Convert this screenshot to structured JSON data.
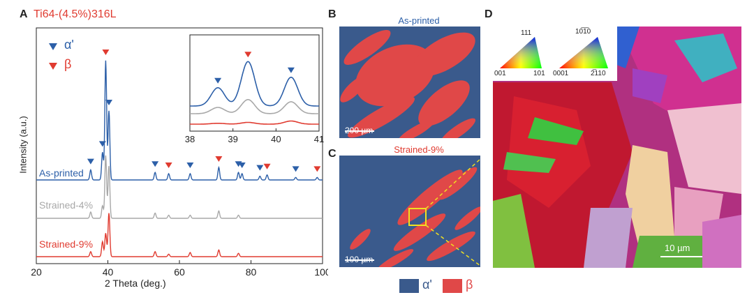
{
  "panels": {
    "a": {
      "letter": "A",
      "title": "Ti64-(4.5%)316L"
    },
    "b": {
      "letter": "B",
      "title": "As-printed",
      "scalebar": "200 µm"
    },
    "c": {
      "letter": "C",
      "title": "Strained-9%",
      "scalebar": "100 µm"
    },
    "d": {
      "letter": "D",
      "scalebar": "10 µm",
      "ipf_cubic": {
        "top": "111",
        "left": "001",
        "right": "101"
      },
      "ipf_hex": {
        "top": "10̅1̅0",
        "left": "0001",
        "right": "2̅110"
      }
    }
  },
  "phase_legend": [
    {
      "label": "α'",
      "color": "#3a5a8c"
    },
    {
      "label": "β",
      "color": "#e04848"
    }
  ],
  "colors": {
    "as_printed": "#2c5fa8",
    "strained4": "#a8a8a8",
    "strained9": "#e03b30",
    "title_red": "#e03b30",
    "alpha_marker": "#2c5fa8",
    "beta_marker": "#e03b30",
    "alpha_map": "#3a5a8c",
    "beta_map": "#e04848"
  },
  "chart_data": [
    {
      "type": "line",
      "xlabel": "2 Theta (deg.)",
      "ylabel": "Intensity (a.u.)",
      "xlim": [
        20,
        100
      ],
      "xticks": [
        20,
        40,
        60,
        80,
        100
      ],
      "legend": [
        {
          "label": "α'",
          "marker": "down-triangle"
        },
        {
          "label": "β",
          "marker": "down-triangle"
        }
      ],
      "series": [
        {
          "name": "As-printed",
          "peaks": [
            [
              35.2,
              0.08
            ],
            [
              38.5,
              0.22
            ],
            [
              39.4,
              0.95
            ],
            [
              40.3,
              0.55
            ],
            [
              53.2,
              0.06
            ],
            [
              57.0,
              0.05
            ],
            [
              63.0,
              0.05
            ],
            [
              71.0,
              0.1
            ],
            [
              76.5,
              0.06
            ],
            [
              77.5,
              0.05
            ],
            [
              82.5,
              0.03
            ],
            [
              84.5,
              0.04
            ],
            [
              92.5,
              0.02
            ],
            [
              98.5,
              0.02
            ]
          ]
        },
        {
          "name": "Strained-4%",
          "peaks": [
            [
              35.2,
              0.06
            ],
            [
              38.5,
              0.12
            ],
            [
              39.4,
              0.6
            ],
            [
              40.3,
              0.5
            ],
            [
              53.2,
              0.05
            ],
            [
              57.0,
              0.03
            ],
            [
              63.0,
              0.03
            ],
            [
              71.0,
              0.07
            ],
            [
              76.5,
              0.03
            ]
          ]
        },
        {
          "name": "Strained-9%",
          "peaks": [
            [
              35.2,
              0.06
            ],
            [
              38.5,
              0.18
            ],
            [
              39.4,
              0.28
            ],
            [
              40.3,
              0.52
            ],
            [
              53.2,
              0.06
            ],
            [
              57.0,
              0.03
            ],
            [
              63.0,
              0.05
            ],
            [
              71.0,
              0.08
            ],
            [
              76.5,
              0.04
            ]
          ]
        }
      ],
      "alpha_markers": [
        35.2,
        38.5,
        40.3,
        53.2,
        63.0,
        76.5,
        77.5,
        82.5,
        92.5
      ],
      "beta_markers": [
        39.4,
        57.0,
        71.0,
        84.5,
        98.5
      ]
    },
    {
      "type": "line",
      "xlim": [
        38,
        41
      ],
      "xticks": [
        38,
        39,
        40,
        41
      ],
      "series": [
        {
          "name": "As-printed",
          "peaks": [
            [
              38.65,
              0.35
            ],
            [
              39.35,
              0.85
            ],
            [
              40.35,
              0.55
            ]
          ]
        },
        {
          "name": "Strained-4%",
          "peaks": [
            [
              38.65,
              0.2
            ],
            [
              39.35,
              0.45
            ],
            [
              40.35,
              0.38
            ]
          ]
        },
        {
          "name": "Strained-9%",
          "peaks": [
            [
              38.65,
              0.05
            ],
            [
              39.35,
              0.1
            ],
            [
              40.35,
              0.18
            ]
          ]
        }
      ],
      "alpha_markers": [
        38.65,
        40.35
      ],
      "beta_markers": [
        39.35
      ]
    }
  ]
}
